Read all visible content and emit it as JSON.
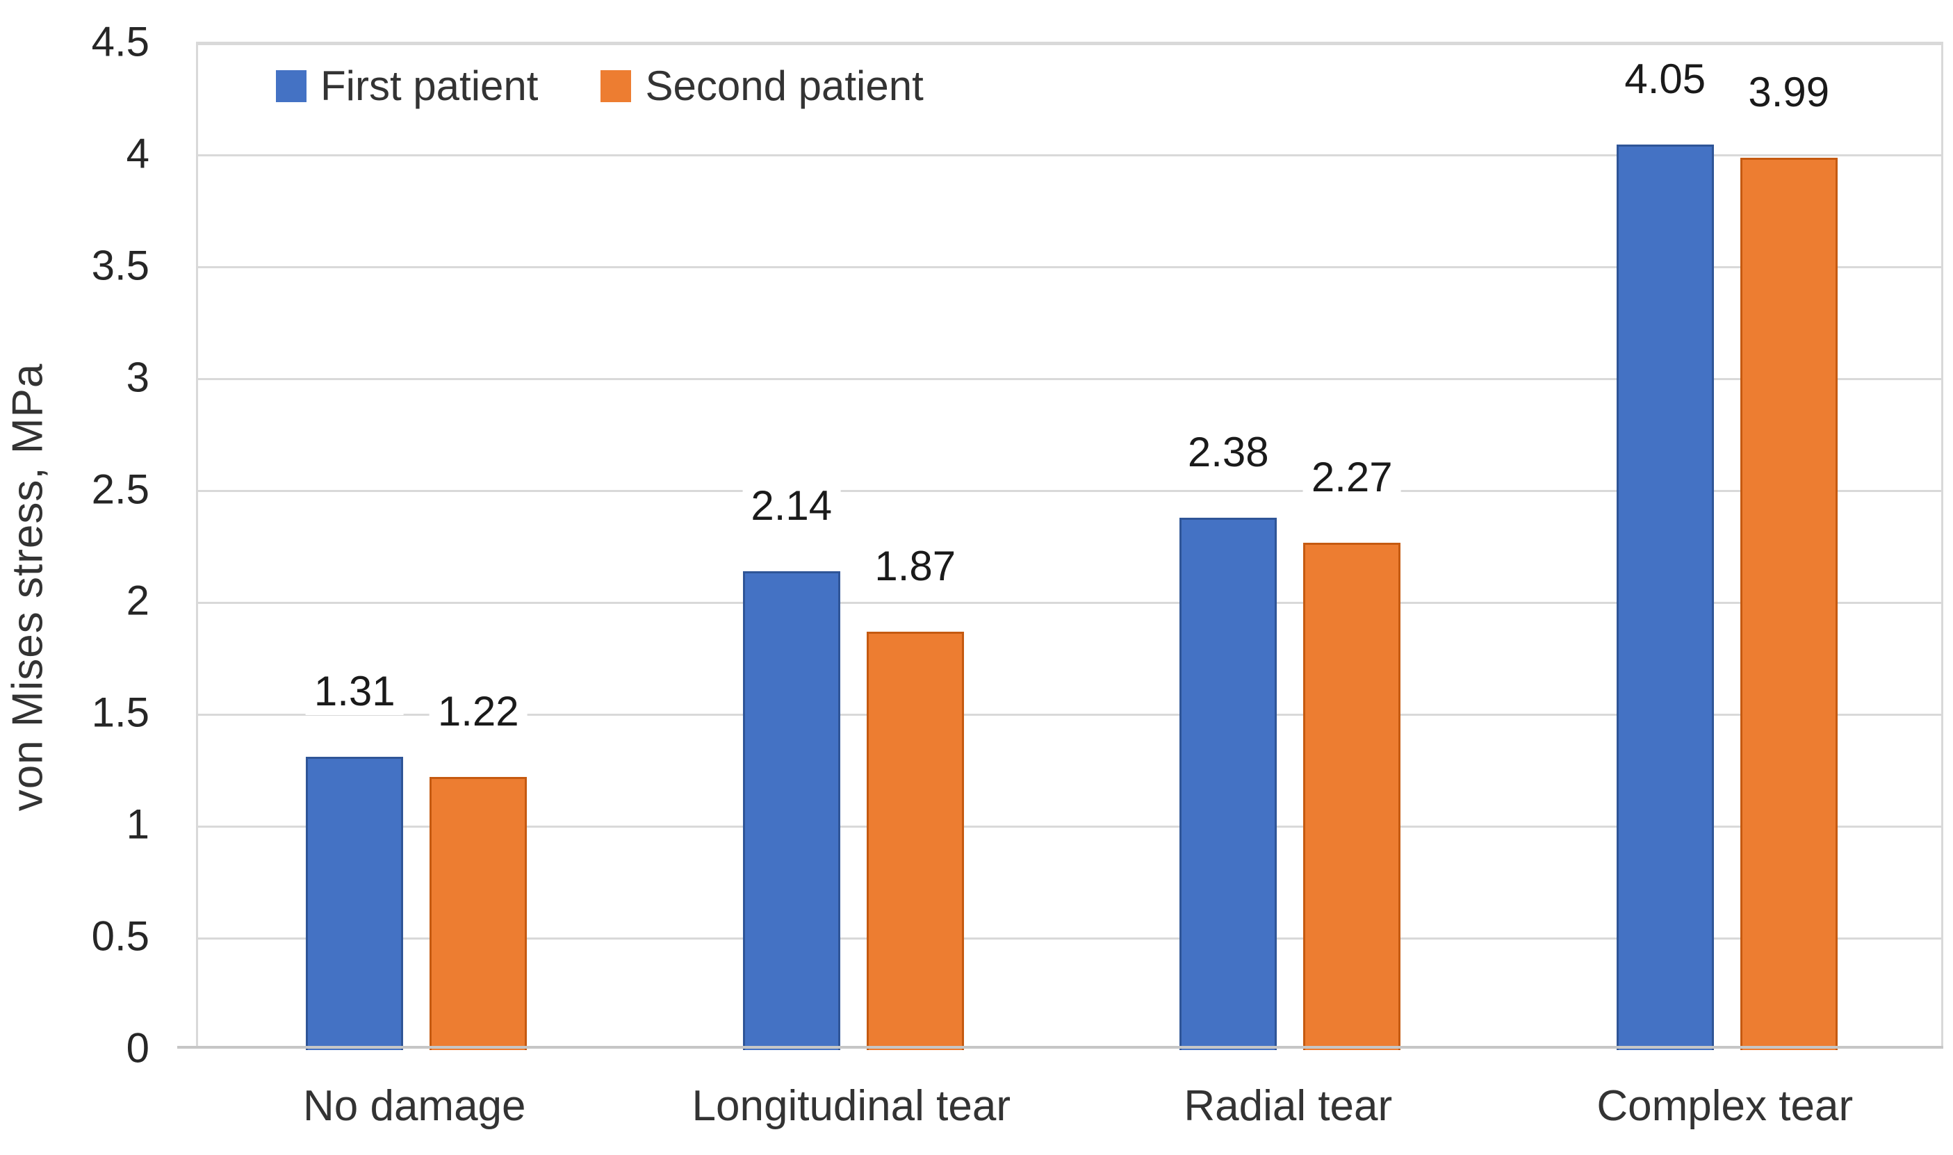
{
  "chart_data": {
    "type": "bar",
    "categories": [
      "No damage",
      "Longitudinal tear",
      "Radial tear",
      "Complex tear"
    ],
    "series": [
      {
        "name": "First patient",
        "color": "#4472C4",
        "border_color": "#2F5597",
        "values": [
          1.31,
          2.14,
          2.38,
          4.05
        ]
      },
      {
        "name": "Second patient",
        "color": "#ED7D31",
        "border_color": "#C55A11",
        "values": [
          1.22,
          1.87,
          2.27,
          3.99
        ]
      }
    ],
    "title": "",
    "xlabel": "",
    "ylabel": "von Mises stress, MPa",
    "ylim": [
      0,
      4.5
    ],
    "ytick_step": 0.5,
    "ytick_labels": [
      "0",
      "0.5",
      "1",
      "1.5",
      "2",
      "2.5",
      "3",
      "3.5",
      "4",
      "4.5"
    ],
    "data_labels": [
      "1.31",
      "1.22",
      "2.14",
      "1.87",
      "2.38",
      "2.27",
      "4.05",
      "3.99"
    ],
    "grid": true,
    "legend_position": "top-inside-left"
  },
  "colors": {
    "gridline": "#D9D9D9",
    "plot_border": "#D9D9D9",
    "axis_line": "#C6C6C6",
    "tick_label": "#262626",
    "data_label": "#1A1A1A",
    "background": "#FFFFFF"
  }
}
